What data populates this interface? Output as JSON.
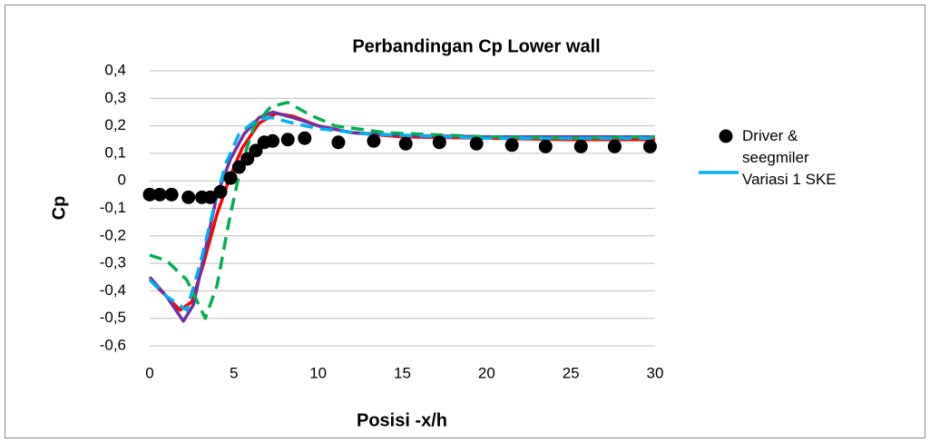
{
  "chart_data": {
    "type": "scatter",
    "title": "Perbandingan Cp Lower wall",
    "xlabel": "Posisi -x/h",
    "ylabel": "Cp",
    "xlim": [
      0,
      30
    ],
    "xticks": [
      0,
      5,
      10,
      15,
      20,
      25,
      30
    ],
    "ylim": [
      -0.6,
      0.4
    ],
    "yticks": [
      {
        "value": 0.4,
        "label": "0,4"
      },
      {
        "value": 0.3,
        "label": "0,3"
      },
      {
        "value": 0.2,
        "label": "0,2"
      },
      {
        "value": 0.1,
        "label": "0,1"
      },
      0,
      {
        "value": -0.1,
        "label": "-0,1"
      },
      {
        "value": -0.2,
        "label": "-0,2"
      },
      {
        "value": -0.3,
        "label": "-0,3"
      },
      {
        "value": -0.4,
        "label": "-0,4"
      },
      {
        "value": -0.5,
        "label": "-0,5"
      },
      {
        "value": -0.6,
        "label": "-0,6"
      }
    ],
    "grid": true,
    "legend": "right",
    "series": [
      {
        "type": "line",
        "color": "#ff0000",
        "x": [
          0,
          1,
          1.8,
          2.5,
          3.2,
          4,
          4.8,
          5.5,
          6.5,
          7.5,
          8.5,
          10,
          12,
          15,
          20,
          25,
          30
        ],
        "values": [
          -0.36,
          -0.42,
          -0.47,
          -0.44,
          -0.3,
          -0.12,
          0.02,
          0.12,
          0.21,
          0.245,
          0.235,
          0.2,
          0.175,
          0.16,
          0.155,
          0.15,
          0.15
        ]
      },
      {
        "type": "line",
        "color": "#7030a0",
        "x": [
          0,
          1,
          2,
          2.6,
          3.3,
          4,
          4.8,
          5.6,
          6.5,
          7.3,
          8.5,
          10,
          12,
          15,
          20,
          25,
          30
        ],
        "values": [
          -0.35,
          -0.42,
          -0.51,
          -0.45,
          -0.25,
          -0.05,
          0.08,
          0.17,
          0.23,
          0.25,
          0.23,
          0.2,
          0.175,
          0.165,
          0.16,
          0.16,
          0.16
        ]
      },
      {
        "type": "line",
        "color": "#00b050",
        "dashed": true,
        "x": [
          0,
          1,
          2.2,
          3.3,
          4,
          4.7,
          5.4,
          6.2,
          7.2,
          8.2,
          9.5,
          11,
          14,
          20,
          25,
          30
        ],
        "values": [
          -0.27,
          -0.29,
          -0.36,
          -0.5,
          -0.38,
          -0.15,
          0.05,
          0.2,
          0.27,
          0.285,
          0.24,
          0.2,
          0.175,
          0.16,
          0.155,
          0.16
        ]
      },
      {
        "type": "line",
        "name": "Variasi 1 SKE",
        "color": "#00b0f0",
        "dashed": true,
        "x": [
          0,
          1,
          2.2,
          3,
          3.8,
          4.5,
          5.3,
          6.3,
          7.2,
          8.5,
          10,
          13,
          20,
          30
        ],
        "values": [
          -0.36,
          -0.42,
          -0.47,
          -0.3,
          -0.1,
          0.06,
          0.17,
          0.22,
          0.23,
          0.21,
          0.19,
          0.17,
          0.155,
          0.155
        ]
      },
      {
        "type": "scatter",
        "name": "Driver & seegmiler",
        "color": "#000000",
        "x": [
          0,
          0.6,
          1.3,
          2.3,
          3.1,
          3.6,
          4.2,
          4.8,
          5.3,
          5.8,
          6.3,
          6.8,
          7.3,
          8.2,
          9.2,
          11.2,
          13.3,
          15.2,
          17.2,
          19.4,
          21.5,
          23.5,
          25.6,
          27.6,
          29.7
        ],
        "values": [
          -0.05,
          -0.05,
          -0.05,
          -0.06,
          -0.06,
          -0.06,
          -0.04,
          0.01,
          0.05,
          0.08,
          0.11,
          0.14,
          0.145,
          0.15,
          0.155,
          0.14,
          0.145,
          0.135,
          0.14,
          0.135,
          0.13,
          0.125,
          0.125,
          0.125,
          0.125
        ]
      }
    ]
  }
}
